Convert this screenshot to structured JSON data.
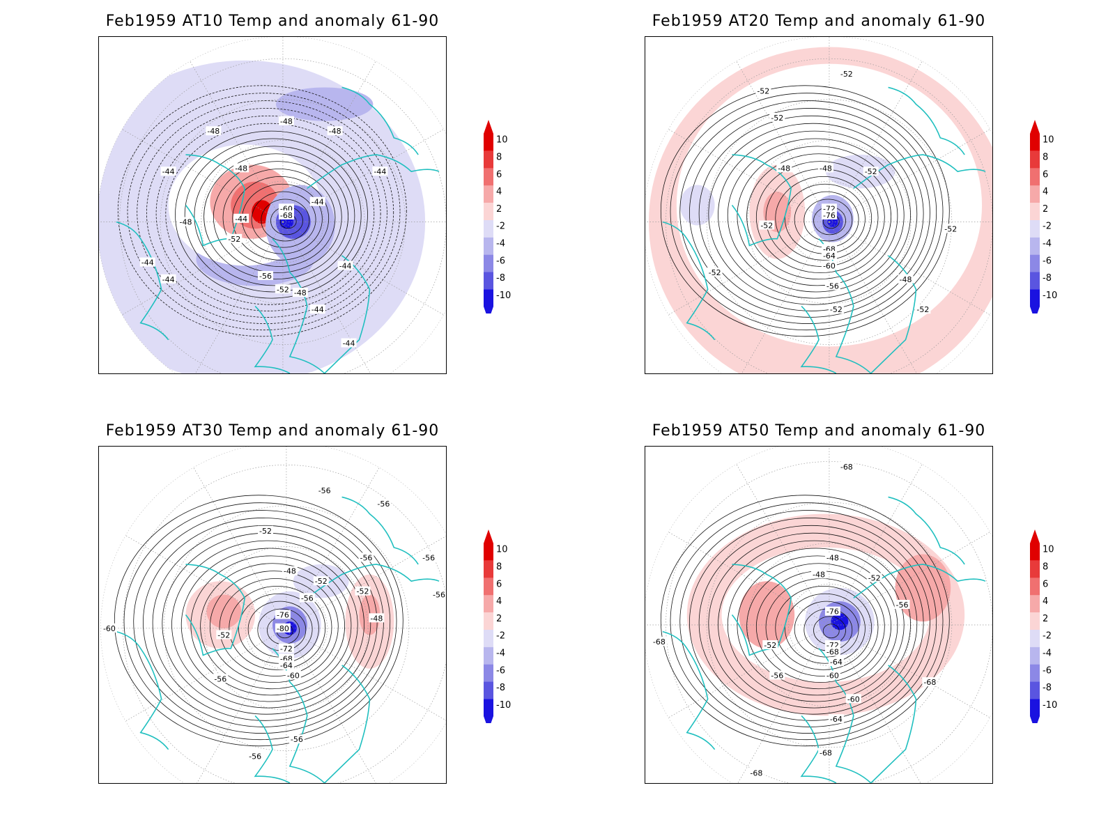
{
  "colors": {
    "coast": "#1fbfbf",
    "contour": "#111111",
    "anom_pos": [
      "#fbd5d5",
      "#f6a9a9",
      "#f07070",
      "#e83a3a",
      "#e00000"
    ],
    "anom_neg": [
      "#dedcf6",
      "#b8b6ee",
      "#8c88e6",
      "#5a55e0",
      "#1a12e0"
    ],
    "grid": "#999999"
  },
  "colorbar": {
    "labels": [
      "10",
      "8",
      "6",
      "4",
      "2",
      "-2",
      "-4",
      "-6",
      "-8",
      "-10"
    ]
  },
  "panels": [
    {
      "title": "Feb1959 AT10 Temp and anomaly 61-90",
      "contour_labels": [
        "-44",
        "-44",
        "-44",
        "-48",
        "-48",
        "-48",
        "-48",
        "-52",
        "-56",
        "-52",
        "-48",
        "-60",
        "-68",
        "-44",
        "-44",
        "-44",
        "-44",
        "-44",
        "-44",
        "-48"
      ]
    },
    {
      "title": "Feb1959 AT20 Temp and anomaly 61-90",
      "contour_labels": [
        "-52",
        "-52",
        "-52",
        "-48",
        "-48",
        "-52",
        "-72",
        "-76",
        "-68",
        "-64",
        "-60",
        "-56",
        "-52",
        "-52",
        "-52",
        "-52",
        "-48",
        "-52"
      ]
    },
    {
      "title": "Feb1959 AT30 Temp and anomaly 61-90",
      "contour_labels": [
        "-56",
        "-56",
        "-52",
        "-48",
        "-52",
        "-56",
        "-56",
        "-52",
        "-76",
        "-80",
        "-72",
        "-68",
        "-64",
        "-60",
        "-52",
        "-56",
        "-48",
        "-60",
        "-56",
        "-56",
        "-56",
        "-56"
      ]
    },
    {
      "title": "Feb1959 AT50 Temp and anomaly 61-90",
      "contour_labels": [
        "-68",
        "-48",
        "-48",
        "-52",
        "-56",
        "-76",
        "-72",
        "-68",
        "-64",
        "-60",
        "-60",
        "-64",
        "-52",
        "-56",
        "-68",
        "-68",
        "-68",
        "-68"
      ]
    }
  ]
}
